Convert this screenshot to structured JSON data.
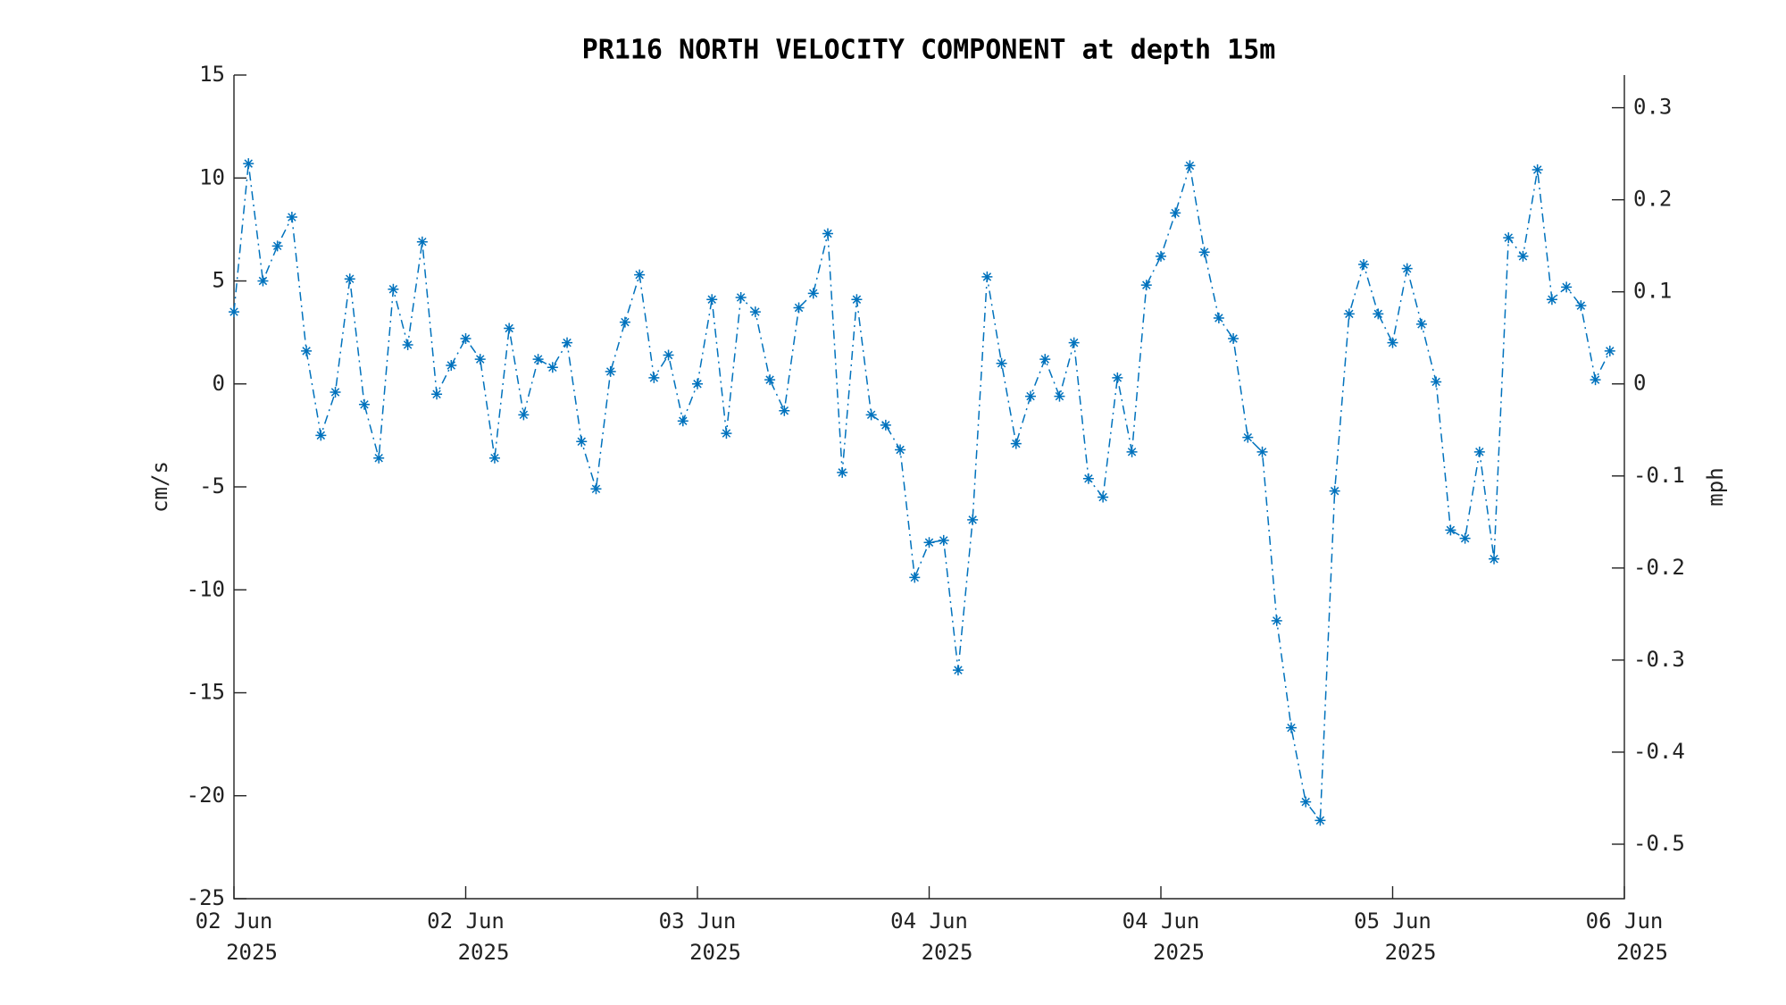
{
  "chart_data": {
    "type": "line",
    "title": "PR116 NORTH VELOCITY COMPONENT at depth 15m",
    "y_label": "cm/s",
    "y2_label": "mph",
    "x": [
      0,
      1,
      2,
      3,
      4,
      5,
      6,
      7,
      8,
      9,
      10,
      11,
      12,
      13,
      14,
      15,
      16,
      17,
      18,
      19,
      20,
      21,
      22,
      23,
      24,
      25,
      26,
      27,
      28,
      29,
      30,
      31,
      32,
      33,
      34,
      35,
      36,
      37,
      38,
      39,
      40,
      41,
      42,
      43,
      44,
      45,
      46,
      47,
      48,
      49,
      50,
      51,
      52,
      53,
      54,
      55,
      56,
      57,
      58,
      59,
      60,
      61,
      62,
      63,
      64,
      65,
      66,
      67,
      68,
      69,
      70,
      71,
      72,
      73,
      74,
      75,
      76,
      77,
      78,
      79,
      80,
      81,
      82,
      83,
      84,
      85,
      86,
      87,
      88,
      89,
      90,
      91,
      92,
      93,
      94,
      95
    ],
    "series": [
      {
        "name": "north velocity",
        "color": "#0072bd",
        "values": [
          3.5,
          10.7,
          5.0,
          6.7,
          8.1,
          1.6,
          -2.5,
          -0.4,
          5.1,
          -1.0,
          -3.6,
          4.6,
          1.9,
          6.9,
          -0.5,
          0.9,
          2.2,
          1.2,
          -3.6,
          2.7,
          -1.5,
          1.2,
          0.8,
          2.0,
          -2.8,
          -5.1,
          0.6,
          3.0,
          5.3,
          0.3,
          1.4,
          -1.8,
          0.0,
          4.1,
          -2.4,
          4.2,
          3.5,
          0.2,
          -1.3,
          3.7,
          4.4,
          7.3,
          -4.3,
          4.1,
          -1.5,
          -2.0,
          -3.2,
          -9.4,
          -7.7,
          -7.6,
          -13.9,
          -6.6,
          5.2,
          1.0,
          -2.9,
          -0.6,
          1.2,
          -0.6,
          2.0,
          -4.6,
          -5.5,
          0.3,
          -3.3,
          4.8,
          6.2,
          8.3,
          10.6,
          6.4,
          3.2,
          2.2,
          -2.6,
          -3.3,
          -11.5,
          -16.7,
          -20.3,
          -21.2,
          -5.2,
          3.4,
          5.8,
          3.4,
          2.0,
          5.6,
          2.9,
          0.1,
          -7.1,
          -7.5,
          -3.3,
          -8.5,
          7.1,
          6.2,
          10.4,
          4.1,
          4.7,
          3.8,
          0.2,
          1.6
        ]
      }
    ],
    "xlim": [
      0,
      96
    ],
    "xticks": [
      {
        "value": 0,
        "label": "02 Jun",
        "year": "2025"
      },
      {
        "value": 16,
        "label": "02 Jun",
        "year": "2025"
      },
      {
        "value": 32,
        "label": "03 Jun",
        "year": "2025"
      },
      {
        "value": 48,
        "label": "04 Jun",
        "year": "2025"
      },
      {
        "value": 64,
        "label": "04 Jun",
        "year": "2025"
      },
      {
        "value": 80,
        "label": "05 Jun",
        "year": "2025"
      },
      {
        "value": 96,
        "label": "06 Jun",
        "year": "2025"
      }
    ],
    "ylim": [
      -25,
      15
    ],
    "yticks": [
      -25,
      -20,
      -15,
      -10,
      -5,
      0,
      5,
      10,
      15
    ],
    "y2lim": [
      -0.5592,
      0.3355
    ],
    "y2ticks": [
      -0.5,
      -0.4,
      -0.3,
      -0.2,
      -0.1,
      0,
      0.1,
      0.2,
      0.3
    ],
    "line_style": "dash-dot",
    "marker": "asterisk",
    "grid": false
  }
}
